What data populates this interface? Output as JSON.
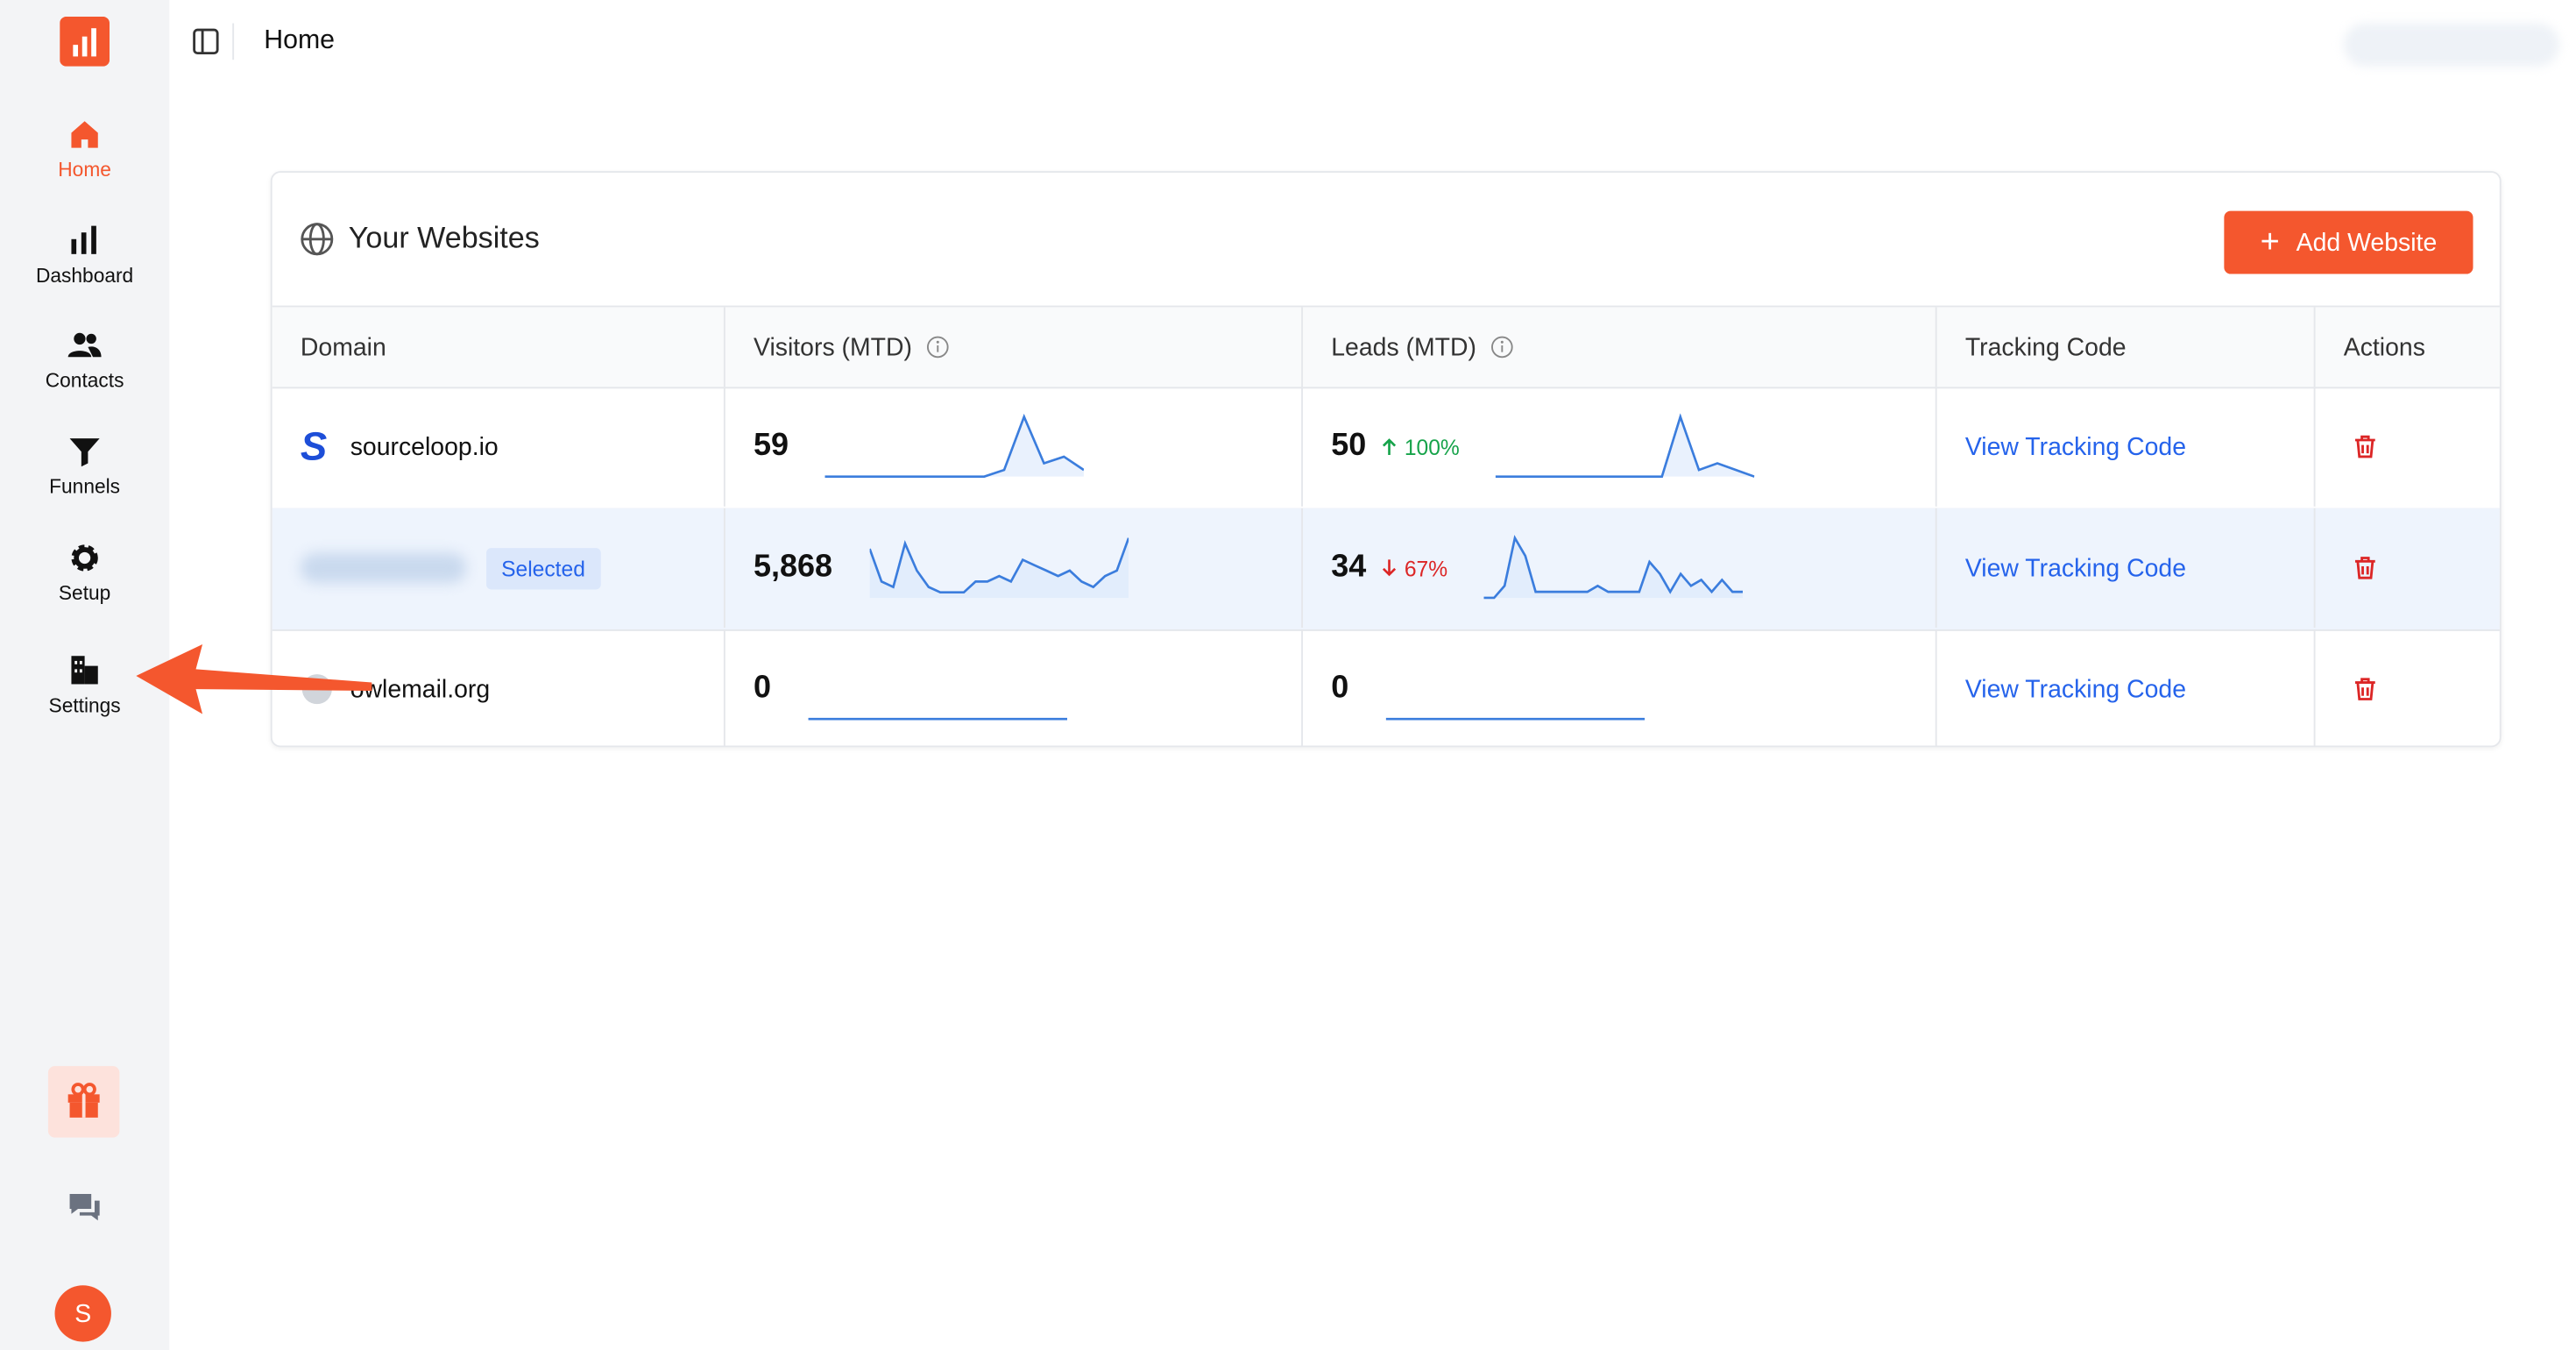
{
  "sidebar": {
    "nav": [
      "Home",
      "Dashboard",
      "Contacts",
      "Funnels",
      "Setup",
      "Settings"
    ],
    "avatar": "S"
  },
  "header": {
    "title": "Home"
  },
  "card": {
    "title": "Your Websites",
    "button": "Add Website",
    "table": {
      "columns": [
        "Domain",
        "Visitors (MTD)",
        "Leads (MTD)",
        "Tracking Code",
        "Actions"
      ],
      "rows": [
        {
          "domain": "sourceloop.io",
          "visitors": "59",
          "visitors_trend": [
            0,
            0,
            0,
            0,
            0,
            0,
            0,
            0,
            0,
            1,
            9,
            2,
            3,
            1
          ],
          "leads": "50",
          "change": "100%",
          "direction": "up",
          "leads_trend": [
            0,
            0,
            0,
            0,
            0,
            0,
            0,
            0,
            0,
            0,
            9,
            1,
            2,
            1,
            0
          ],
          "link": "View Tracking Code"
        },
        {
          "badge": "Selected",
          "visitors": "5,868",
          "visitors_trend": [
            9,
            3,
            2,
            10,
            5,
            2,
            1,
            1,
            1,
            3,
            3,
            4,
            3,
            7,
            6,
            5,
            4,
            5,
            3,
            2,
            4,
            5,
            11
          ],
          "leads": "34",
          "change": "67%",
          "direction": "down",
          "leads_trend": [
            0,
            0,
            2,
            10,
            7,
            1,
            1,
            1,
            1,
            1,
            1,
            2,
            1,
            1,
            1,
            1,
            6,
            4,
            1,
            4,
            2,
            3,
            1,
            3,
            1,
            1
          ],
          "link": "View Tracking Code"
        },
        {
          "domain": "owlemail.org",
          "visitors": "0",
          "visitors_trend": [
            0,
            0
          ],
          "leads": "0",
          "leads_trend": [
            0,
            0
          ],
          "link": "View Tracking Code"
        }
      ]
    }
  }
}
